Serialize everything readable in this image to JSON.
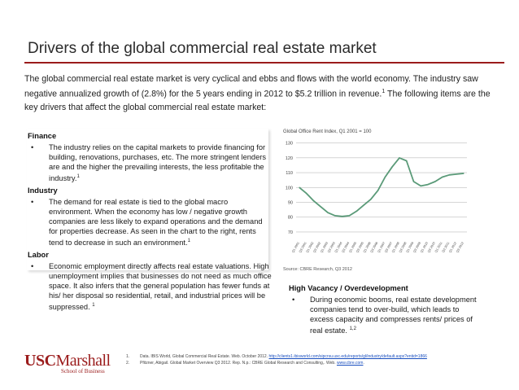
{
  "title": "Drivers of the global commercial real estate market",
  "intro": {
    "text": "The global commercial real estate market is very cyclical and ebbs and flows with the world economy.  The industry saw negative annualized growth of (2.8%) for the 5 years ending in 2012 to $5.2 trillion in revenue.",
    "sup": "1",
    "tail": "  The following items are the key drivers that affect the global commercial real estate market:"
  },
  "sections": {
    "finance": {
      "heading": "Finance",
      "bullet": "The industry relies on the capital  markets to provide financing for building, renovations, purchases, etc.  The more stringent lenders are and the higher the prevailing interests, the less profitable the industry.",
      "sup": "1"
    },
    "industry": {
      "heading": "Industry",
      "bullet": "The demand for real estate is tied to the global macro environment.  When the economy has low / negative growth companies are less likely to expand operations and the demand for properties decrease. As seen in the chart to the right, rents tend to decrease in such an environment.",
      "sup": "1"
    },
    "labor": {
      "heading": "Labor",
      "bullet": "Economic employment directly affects real estate valuations. High unemployment implies that businesses do not need as much office space.  It also infers that the general population has fewer funds at his/ her disposal so residential, retail, and industrial prices will be suppressed.",
      "sup": "1"
    },
    "vacancy": {
      "heading": "High Vacancy / Overdevelopment",
      "bullet": "During economic booms, real estate development companies tend to over-build, which leads to excess capacity and compresses rents/ prices of real estate.",
      "sup": "1,2"
    }
  },
  "bullet_char": "•",
  "chart_data": {
    "type": "line",
    "title": "Global Office Rent Index, Q1 2001 = 100",
    "source": "Source: CBRE Research, Q3 2012",
    "x": [
      "Q1 2001",
      "Q3 2001",
      "Q1 2002",
      "Q3 2002",
      "Q1 2003",
      "Q3 2003",
      "Q1 2004",
      "Q3 2004",
      "Q1 2005",
      "Q3 2005",
      "Q1 2006",
      "Q3 2006",
      "Q1 2007",
      "Q3 2007",
      "Q1 2008",
      "Q3 2008",
      "Q1 2009",
      "Q3 2009",
      "Q1 2010",
      "Q3 2010",
      "Q1 2011",
      "Q3 2011",
      "Q1 2012",
      "Q3 2012"
    ],
    "values": [
      100,
      96,
      91,
      87,
      83,
      81,
      80.5,
      81,
      84,
      88,
      92,
      98,
      107,
      114,
      120,
      118,
      104,
      101,
      102,
      104,
      107,
      108.5,
      109,
      109.5
    ],
    "yticks": [
      70,
      80,
      90,
      100,
      110,
      120,
      130
    ],
    "ylim": [
      65,
      132
    ],
    "grid": true,
    "color": "#5a9a78"
  },
  "footnotes": [
    {
      "num": "1.",
      "text": "Data. IBIS World, Global Commercial Real Estate. Web. October 2012. ",
      "link": "http://clients1.ibisworld.com/sipcrsu.usc.edu/reports/gl/industry/default.aspx?entid=1866"
    },
    {
      "num": "2.",
      "text": "Pfitzner, Abigail. Global Market Overview Q3 2012. Rep. N.p.: CBRE Global Research and Consulting,. Web. ",
      "link": "www.cbre.com",
      "tail": "."
    }
  ],
  "logo": {
    "usc": "USC",
    "marshall": "Marshall",
    "sub": "School of Business"
  }
}
